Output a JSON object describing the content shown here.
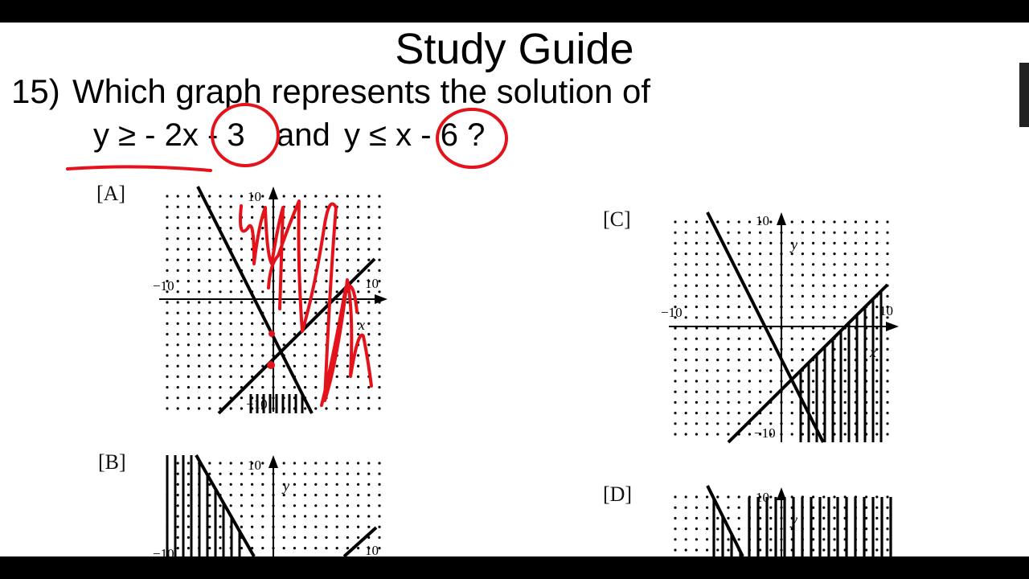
{
  "header": {
    "title": "Study Guide"
  },
  "question": {
    "number": "15)",
    "prompt": "Which graph represents the solution of",
    "ineq_a": "y ≥ - 2x - 3",
    "joiner": "and",
    "ineq_b": "y ≤  x - 6 ?"
  },
  "options": [
    {
      "label": "[A]",
      "tick_pos": "10",
      "tick_neg": "−10",
      "axis_x": "x"
    },
    {
      "label": "[B]",
      "tick_pos": "10",
      "tick_neg": "−10",
      "axis_y": "y"
    },
    {
      "label": "[C]",
      "tick_pos": "10",
      "tick_neg": "−10",
      "axis_x": "x",
      "axis_y": "y"
    },
    {
      "label": "[D]",
      "tick_pos": "10",
      "axis_y": "y"
    }
  ],
  "colors": {
    "ink": "#000000",
    "annotation": "#e3121b",
    "page": "#ffffff",
    "frame": "#000000"
  }
}
